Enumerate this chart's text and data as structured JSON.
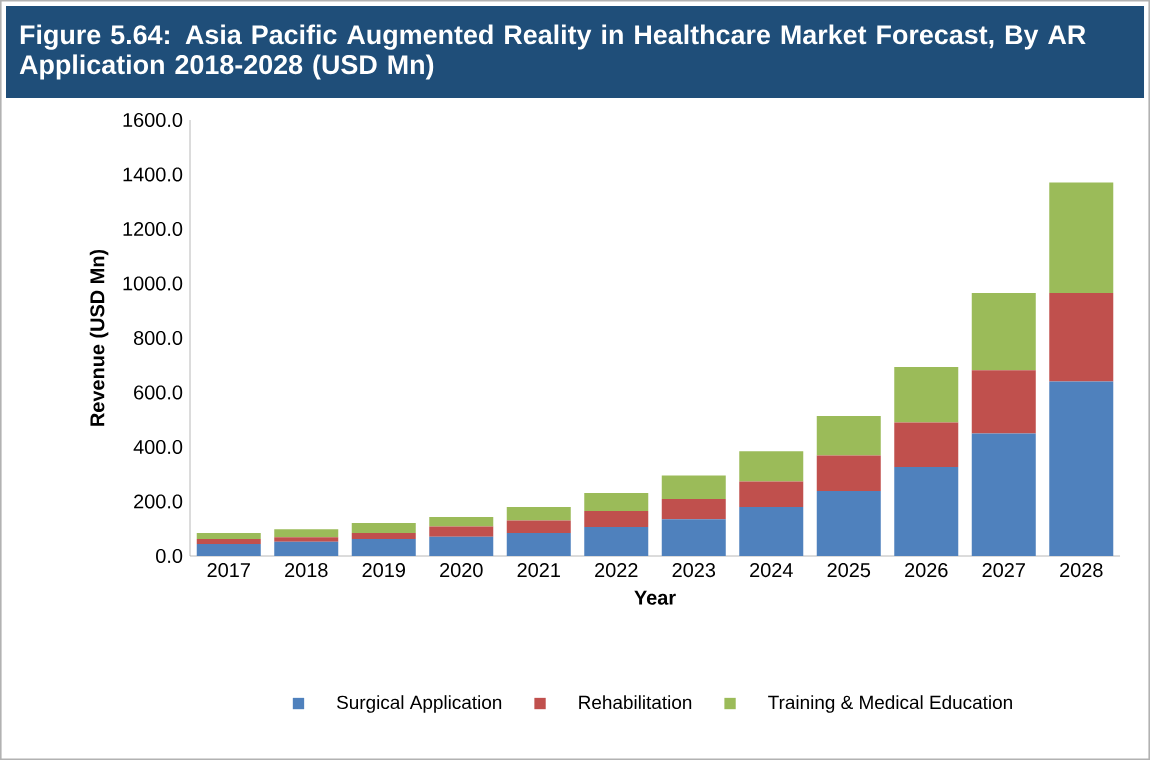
{
  "chart_data": {
    "type": "bar",
    "stacked": true,
    "title": "Figure 5.64: Asia Pacific Augmented Reality in Healthcare Market Forecast, By AR Application 2018-2028 (USD Mn)",
    "xlabel": "Year",
    "ylabel": "Revenue (USD Mn)",
    "categories": [
      "2017",
      "2018",
      "2019",
      "2020",
      "2021",
      "2022",
      "2023",
      "2024",
      "2025",
      "2026",
      "2027",
      "2028"
    ],
    "series": [
      {
        "name": "Surgical Application",
        "color": "#4f81bd",
        "values": [
          44,
          52,
          62,
          71,
          84,
          106,
          135,
          180,
          239,
          327,
          450,
          640
        ]
      },
      {
        "name": "Rehabilitation",
        "color": "#c0504d",
        "values": [
          18,
          17,
          22,
          37,
          46,
          59,
          74,
          93,
          130,
          163,
          232,
          325
        ]
      },
      {
        "name": "Training & Medical Education",
        "color": "#9bbb59",
        "values": [
          22,
          29,
          37,
          35,
          50,
          66,
          86,
          111,
          145,
          204,
          283,
          406
        ]
      }
    ],
    "ylim": [
      0,
      1600
    ],
    "yticks": [
      {
        "value": 0,
        "label": "0.0"
      },
      {
        "value": 200,
        "label": "200.0"
      },
      {
        "value": 400,
        "label": "400.0"
      },
      {
        "value": 600,
        "label": "600.0"
      },
      {
        "value": 800,
        "label": "800.0"
      },
      {
        "value": 1000,
        "label": "1000.0"
      },
      {
        "value": 1200,
        "label": "1200.0"
      },
      {
        "value": 1400,
        "label": "1400.0"
      },
      {
        "value": 1600,
        "label": "1600.0"
      }
    ],
    "legend": "bottom"
  }
}
